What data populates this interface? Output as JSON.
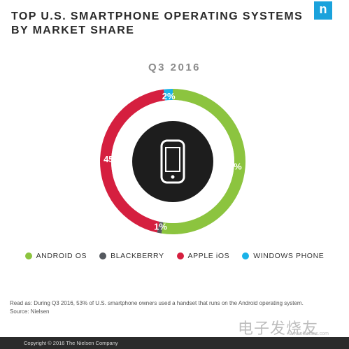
{
  "header": {
    "title_line1": "TOP U.S. SMARTPHONE OPERATING SYSTEMS",
    "title_line2": "BY MARKET SHARE",
    "logo_letter": "n"
  },
  "chart_data": {
    "type": "pie",
    "title": "TOP U.S. SMARTPHONE OPERATING SYSTEMS BY MARKET SHARE",
    "subtitle": "Q3 2016",
    "slices": [
      {
        "label": "ANDROID OS",
        "value": 53,
        "display": "53%",
        "color": "#8cc43f"
      },
      {
        "label": "BLACKBERRY",
        "value": 1,
        "display": "1%",
        "color": "#55595f"
      },
      {
        "label": "APPLE iOS",
        "value": 45,
        "display": "45%",
        "color": "#d51f3f"
      },
      {
        "label": "WINDOWS PHONE",
        "value": 2,
        "display": "2%",
        "color": "#1ab2e8"
      }
    ],
    "center_icon": "smartphone-icon",
    "legend_position": "bottom"
  },
  "footnote": {
    "read_as": "Read as: During Q3 2016, 53% of U.S. smartphone owners used a handset that runs on the Android operating system.",
    "source": "Source: Nielsen"
  },
  "watermark": {
    "text": "电子发烧友",
    "sub": "www.elecfans.com"
  },
  "copyright": "Copyright © 2016 The Nielsen Company"
}
